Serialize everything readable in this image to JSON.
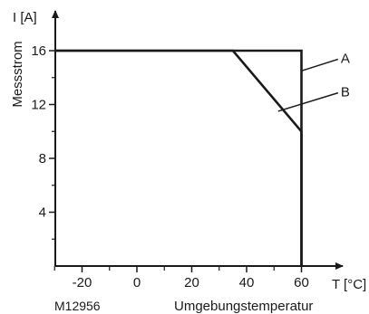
{
  "chart_data": {
    "type": "line",
    "x_axis_unit": "T [°C]",
    "y_axis_unit": "I [A]",
    "ylabel": "Messstrom",
    "xlabel": "Umgebungstemperatur",
    "figure_id": "M12956",
    "xlim": [
      -30,
      66
    ],
    "ylim": [
      0,
      17
    ],
    "x_ticks": [
      -20,
      0,
      20,
      40,
      60
    ],
    "x_minor_ticks": [
      -30,
      -10,
      10,
      30,
      50
    ],
    "y_ticks": [
      4,
      8,
      12,
      16
    ],
    "y_minor_ticks": [
      2,
      6,
      10,
      14
    ],
    "series": [
      {
        "name": "A",
        "points": [
          [
            -30,
            16
          ],
          [
            60,
            16
          ],
          [
            60,
            0
          ]
        ]
      },
      {
        "name": "B",
        "points": [
          [
            -30,
            16
          ],
          [
            35,
            16
          ],
          [
            60,
            10
          ],
          [
            60,
            0
          ]
        ]
      }
    ],
    "annotations": [
      {
        "label": "A",
        "target": [
          60,
          14.5
        ],
        "text_at": [
          75,
          15.5
        ]
      },
      {
        "label": "B",
        "target": [
          51.5,
          11.5
        ],
        "text_at": [
          75,
          13
        ]
      }
    ]
  }
}
